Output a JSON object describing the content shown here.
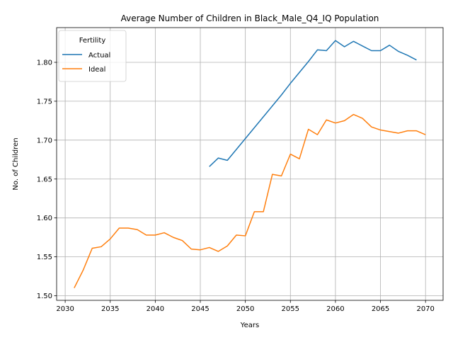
{
  "chart_data": {
    "type": "line",
    "title": "Average Number of Children in Black_Male_Q4_IQ Population",
    "xlabel": "Years",
    "ylabel": "No. of Children",
    "xlim": [
      2029.05,
      2071.95
    ],
    "ylim": [
      1.4941,
      1.8446
    ],
    "xticks": [
      2030,
      2035,
      2040,
      2045,
      2050,
      2055,
      2060,
      2065,
      2070
    ],
    "yticks": [
      1.5,
      1.55,
      1.6,
      1.65,
      1.7,
      1.75,
      1.8
    ],
    "ytick_labels": [
      "1.50",
      "1.55",
      "1.60",
      "1.65",
      "1.70",
      "1.75",
      "1.80"
    ],
    "grid": true,
    "legend": {
      "title": "Fertility",
      "placement": "top-left"
    },
    "series": [
      {
        "name": "Actual",
        "color": "#1f77b4",
        "x": [
          2046,
          2047,
          2048,
          2049,
          2050,
          2051,
          2052,
          2053,
          2054,
          2055,
          2056,
          2057,
          2058,
          2059,
          2060,
          2061,
          2062,
          2063,
          2064,
          2065,
          2066,
          2067,
          2068,
          2069
        ],
        "y": [
          1.666,
          1.677,
          1.674,
          1.688,
          1.702,
          1.716,
          1.73,
          1.744,
          1.758,
          1.773,
          1.787,
          1.801,
          1.816,
          1.815,
          1.828,
          1.82,
          1.827,
          1.821,
          1.815,
          1.815,
          1.822,
          1.814,
          1.809,
          1.803
        ]
      },
      {
        "name": "Ideal",
        "color": "#ff7f0e",
        "x": [
          2031,
          2032,
          2033,
          2034,
          2035,
          2036,
          2037,
          2038,
          2039,
          2040,
          2041,
          2042,
          2043,
          2044,
          2045,
          2046,
          2047,
          2048,
          2049,
          2050,
          2051,
          2052,
          2053,
          2054,
          2055,
          2056,
          2057,
          2058,
          2059,
          2060,
          2061,
          2062,
          2063,
          2064,
          2065,
          2066,
          2067,
          2068,
          2069,
          2070
        ],
        "y": [
          1.51,
          1.533,
          1.561,
          1.563,
          1.573,
          1.587,
          1.587,
          1.585,
          1.578,
          1.578,
          1.581,
          1.575,
          1.571,
          1.56,
          1.559,
          1.562,
          1.557,
          1.564,
          1.578,
          1.577,
          1.608,
          1.608,
          1.656,
          1.654,
          1.682,
          1.676,
          1.714,
          1.707,
          1.726,
          1.722,
          1.725,
          1.733,
          1.728,
          1.717,
          1.713,
          1.711,
          1.709,
          1.712,
          1.712,
          1.707
        ]
      }
    ]
  }
}
